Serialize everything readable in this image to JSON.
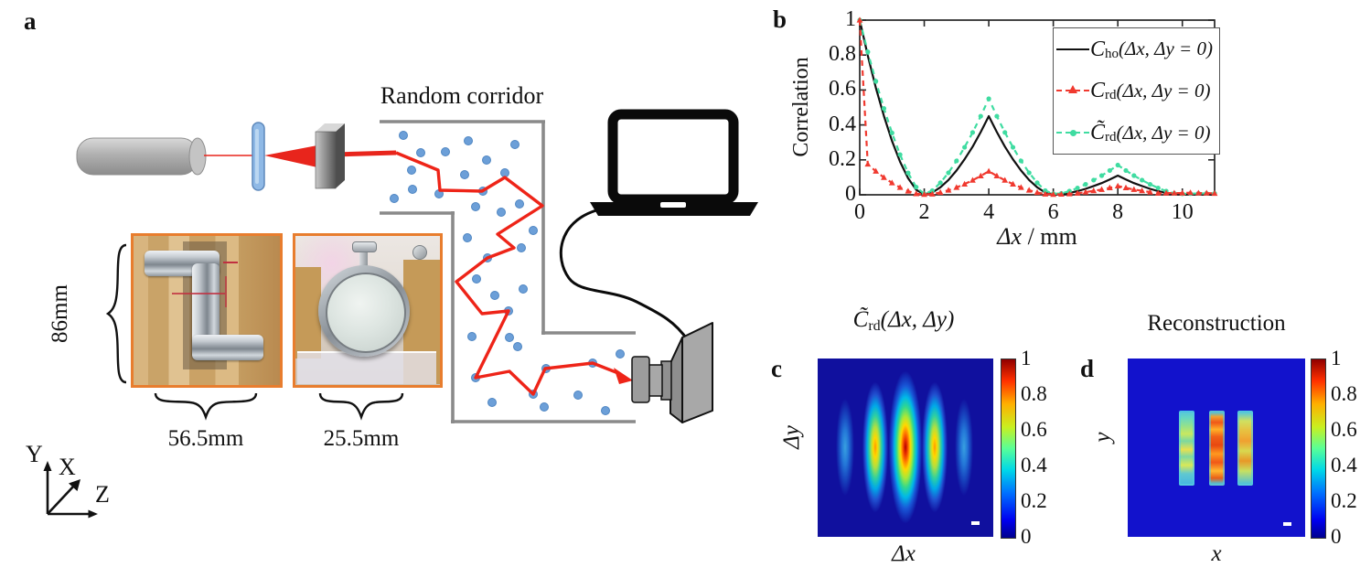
{
  "figure": {
    "panel_a": {
      "label": "a",
      "corridor_title": "Random corridor",
      "dims": {
        "height": "86mm",
        "corridor_width": "56.5mm",
        "diffuser_width": "25.5mm"
      },
      "axes": {
        "up": "Y",
        "diag": "X",
        "right": "Z"
      }
    },
    "panel_b": {
      "label": "b",
      "ylabel": "Correlation",
      "xlabel_sym": "Δx",
      "xlabel_unit": " / mm",
      "x_ticks": [
        "0",
        "2",
        "4",
        "6",
        "8",
        "10"
      ],
      "y_ticks": [
        "1",
        "0.8",
        "0.6",
        "0.4",
        "0.2",
        "0"
      ],
      "legend": [
        {
          "main": "C",
          "sub": "ho",
          "rest": "(Δx, Δy = 0)",
          "color": "#111111",
          "style": "solid-line"
        },
        {
          "main": "C",
          "sub": "rd",
          "rest": "(Δx, Δy = 0)",
          "color": "#f0392f",
          "style": "dashed-triangle"
        },
        {
          "main": "C̃",
          "sub": "rd",
          "rest": "(Δx, Δy = 0)",
          "color": "#3fdca1",
          "style": "dashed-dot"
        }
      ]
    },
    "panel_c": {
      "label": "c",
      "title_main": "C̃",
      "title_sub": "rd",
      "title_rest": "(Δx, Δy)",
      "ylabel": "Δy",
      "xlabel": "Δx",
      "colorbar_ticks": [
        "1",
        "0.8",
        "0.6",
        "0.4",
        "0.2",
        "0"
      ]
    },
    "panel_d": {
      "label": "d",
      "title": "Reconstruction",
      "ylabel": "y",
      "xlabel": "x",
      "colorbar_ticks": [
        "1",
        "0.8",
        "0.6",
        "0.4",
        "0.2",
        "0"
      ]
    }
  },
  "chart_data": [
    {
      "id": "b",
      "type": "line",
      "title": "",
      "xlabel": "Δx / mm",
      "ylabel": "Correlation",
      "xlim": [
        0,
        11
      ],
      "ylim": [
        0,
        1
      ],
      "legend_position": "upper right",
      "x": [
        0,
        0.25,
        0.5,
        0.75,
        1,
        1.25,
        1.5,
        1.75,
        2,
        2.25,
        2.5,
        2.75,
        3,
        3.25,
        3.5,
        3.75,
        4,
        4.25,
        4.5,
        4.75,
        5,
        5.25,
        5.5,
        5.75,
        6,
        6.25,
        6.5,
        6.75,
        7,
        7.25,
        7.5,
        7.75,
        8,
        8.25,
        8.5,
        8.75,
        9,
        9.25,
        9.5,
        9.75,
        10,
        10.25,
        10.5,
        10.75,
        11
      ],
      "series": [
        {
          "name": "C_ho(Δx, Δy = 0)",
          "color": "#111111",
          "line": "solid",
          "marker": "none",
          "y": [
            1,
            0.797,
            0.613,
            0.45,
            0.308,
            0.189,
            0.095,
            0.029,
            0.002,
            0.013,
            0.043,
            0.085,
            0.139,
            0.203,
            0.276,
            0.359,
            0.45,
            0.359,
            0.276,
            0.203,
            0.139,
            0.085,
            0.043,
            0.013,
            0.002,
            0.003,
            0.01,
            0.021,
            0.034,
            0.05,
            0.067,
            0.088,
            0.11,
            0.088,
            0.067,
            0.05,
            0.034,
            0.021,
            0.01,
            0.003,
            0.002,
            0.002,
            0.002,
            0.002,
            0.002
          ]
        },
        {
          "name": "C_rd(Δx, Δy = 0)",
          "color": "#f0392f",
          "line": "dashed",
          "marker": "triangle",
          "y": [
            1,
            0.175,
            0.135,
            0.099,
            0.068,
            0.042,
            0.021,
            0.006,
            0.002,
            0.004,
            0.013,
            0.026,
            0.042,
            0.061,
            0.083,
            0.108,
            0.135,
            0.108,
            0.083,
            0.061,
            0.042,
            0.026,
            0.013,
            0.004,
            0.002,
            0.003,
            0.005,
            0.009,
            0.015,
            0.023,
            0.03,
            0.04,
            0.05,
            0.04,
            0.03,
            0.023,
            0.015,
            0.009,
            0.01,
            0.01,
            0.01,
            0.012,
            0.01,
            0.01,
            0.008
          ]
        },
        {
          "name": "C̃_rd(Δx, Δy = 0)",
          "color": "#3fdca1",
          "line": "dashed",
          "marker": "dot",
          "y": [
            1,
            0.818,
            0.65,
            0.494,
            0.354,
            0.23,
            0.125,
            0.044,
            0.006,
            0.024,
            0.069,
            0.126,
            0.194,
            0.272,
            0.357,
            0.45,
            0.55,
            0.45,
            0.357,
            0.272,
            0.194,
            0.126,
            0.069,
            0.024,
            0.006,
            0.008,
            0.021,
            0.039,
            0.06,
            0.084,
            0.11,
            0.139,
            0.17,
            0.139,
            0.11,
            0.084,
            0.06,
            0.039,
            0.021,
            0.008,
            0.006,
            0.007,
            0.008,
            0.008,
            0.008
          ]
        }
      ]
    },
    {
      "id": "c",
      "type": "heatmap",
      "title": "C̃_rd(Δx, Δy)",
      "xlabel": "Δx",
      "ylabel": "Δy",
      "colormap": "jet",
      "clim": [
        0,
        1
      ],
      "description": "Five vertical elliptical correlation peaks on a dark blue background; central peak reaches 1.",
      "peaks": [
        {
          "x_frac": 0.156,
          "amplitude": 0.15
        },
        {
          "x_frac": 0.328,
          "amplitude": 0.6
        },
        {
          "x_frac": 0.5,
          "amplitude": 1.0
        },
        {
          "x_frac": 0.667,
          "amplitude": 0.6
        },
        {
          "x_frac": 0.833,
          "amplitude": 0.15
        }
      ]
    },
    {
      "id": "d",
      "type": "heatmap",
      "title": "Reconstruction",
      "xlabel": "x",
      "ylabel": "y",
      "colormap": "jet",
      "clim": [
        0,
        1
      ],
      "description": "Three mottled vertical bars (reconstructed triple slit) on a blue background.",
      "bars": [
        {
          "x_frac": 0.33,
          "amplitude": 0.55
        },
        {
          "x_frac": 0.5,
          "amplitude": 0.85
        },
        {
          "x_frac": 0.66,
          "amplitude": 0.6
        }
      ]
    }
  ]
}
